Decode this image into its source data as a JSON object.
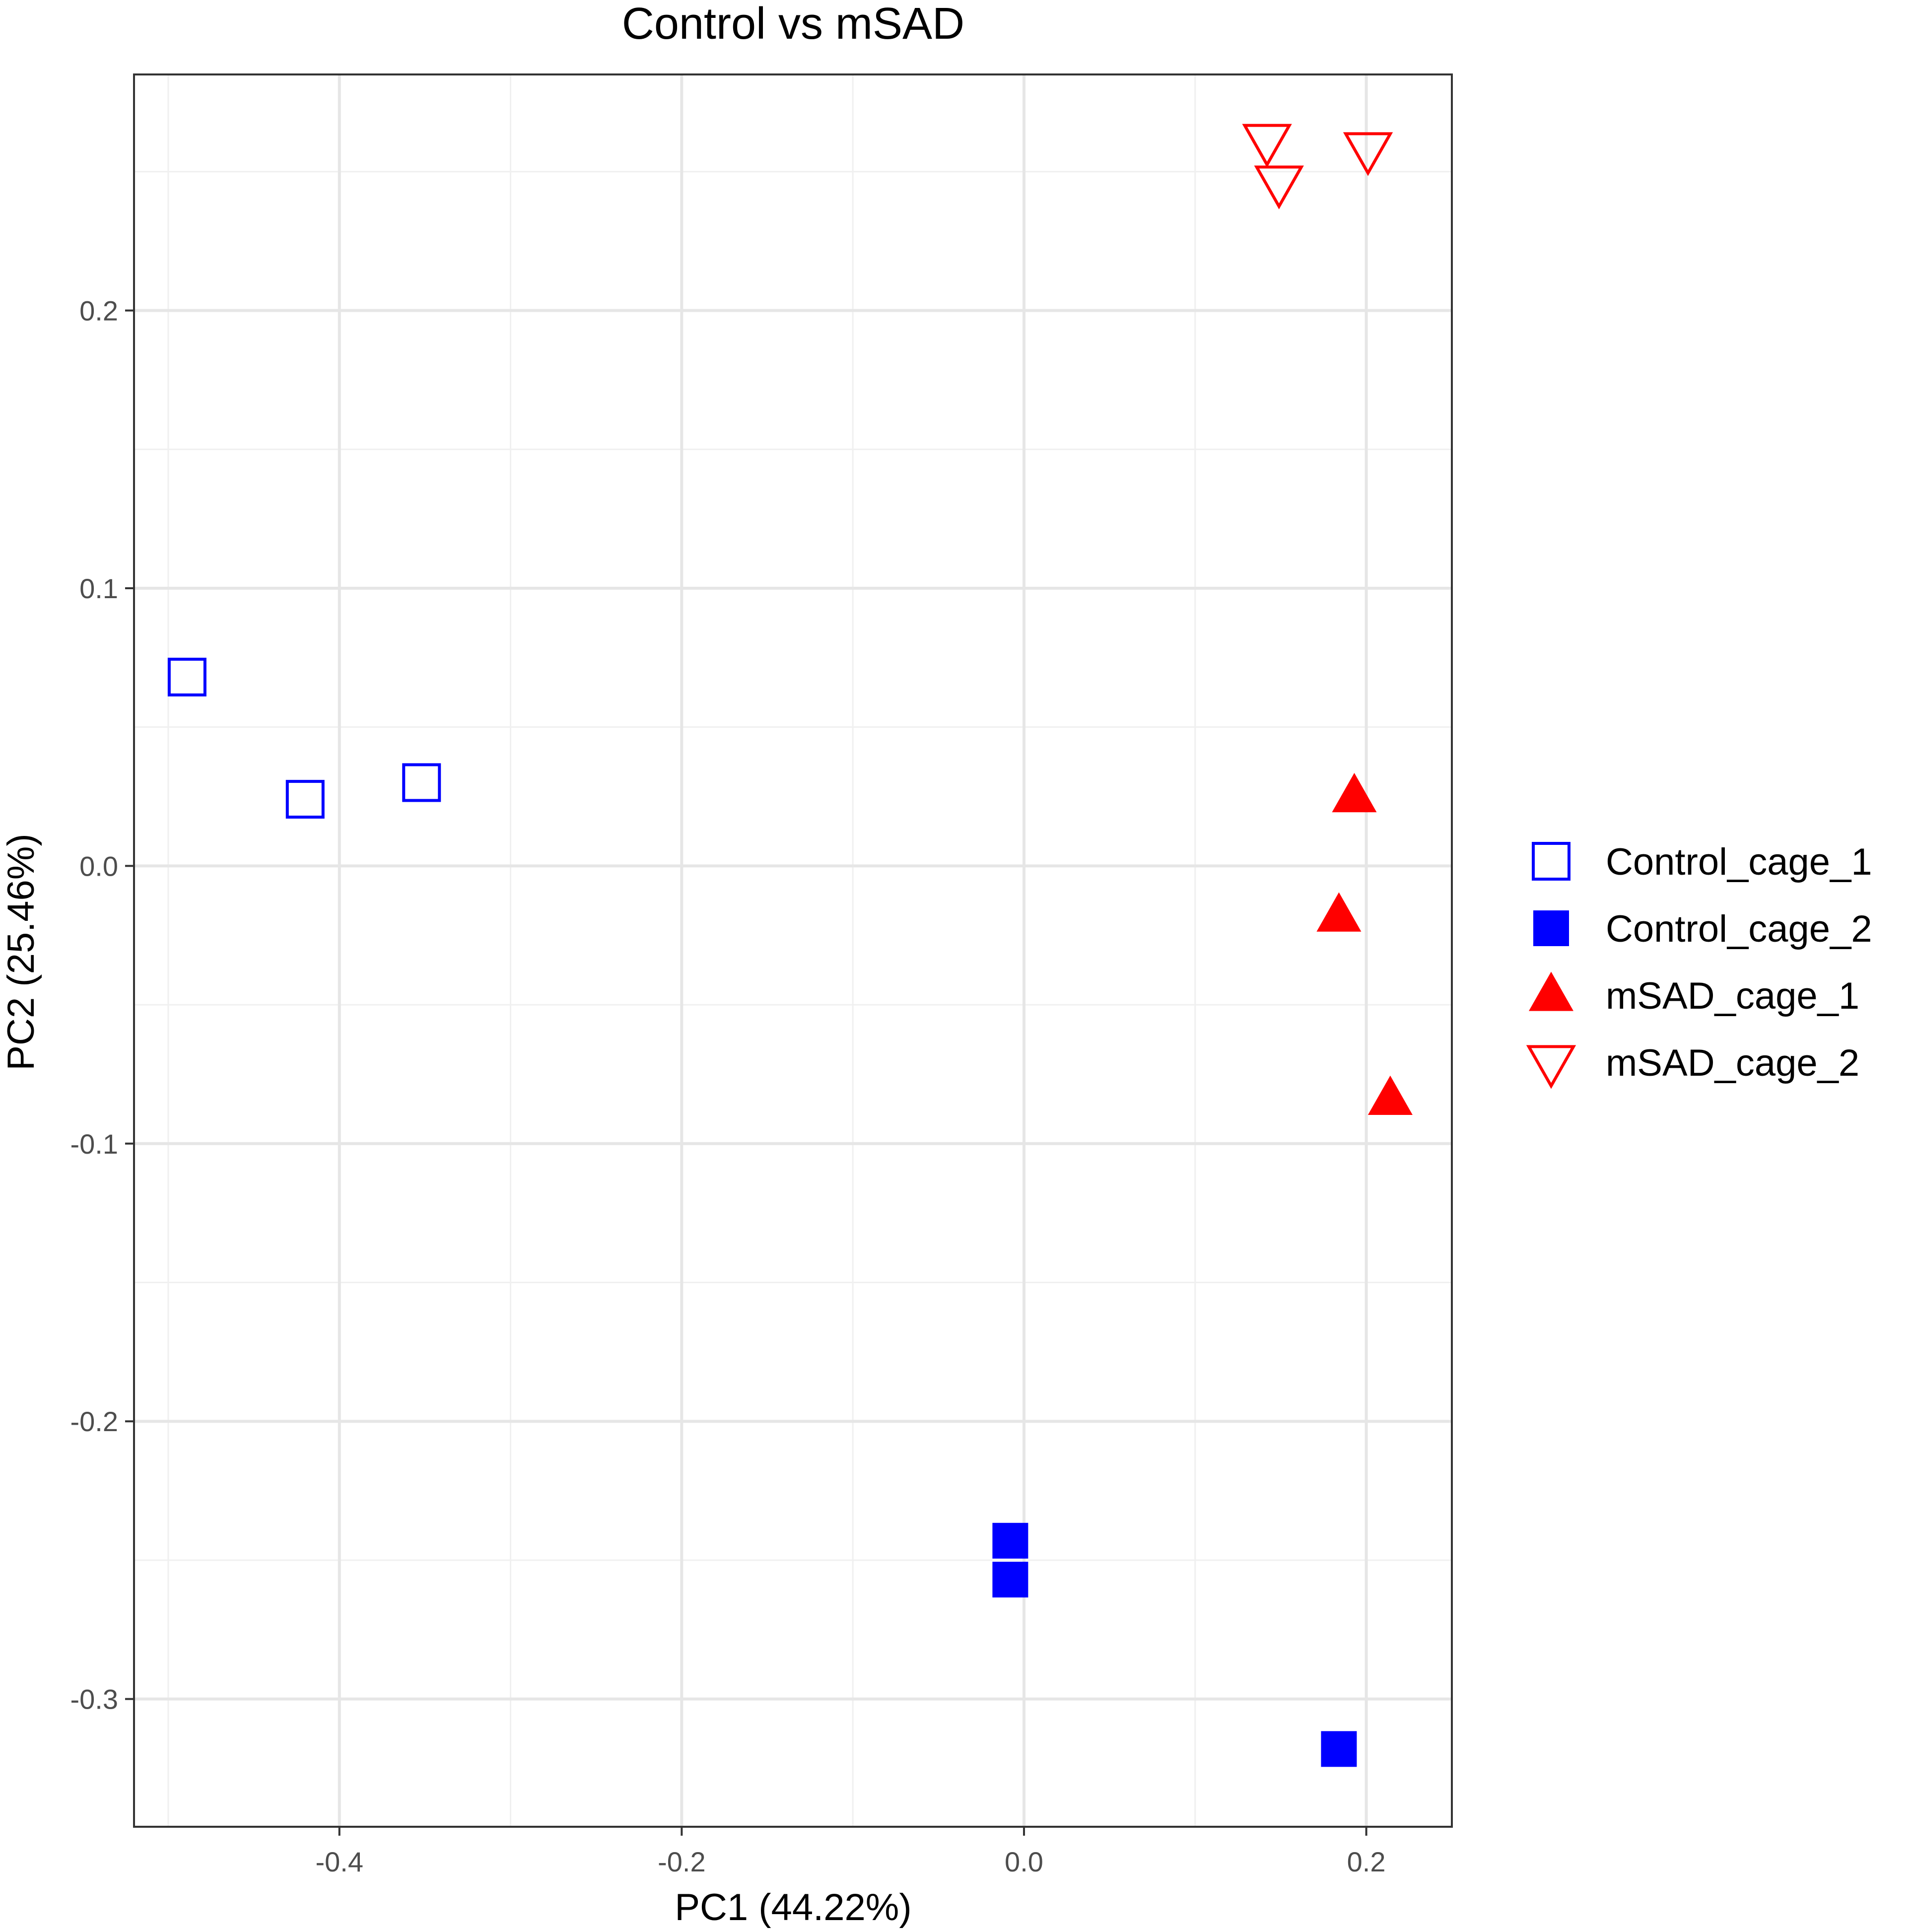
{
  "chart_data": {
    "type": "scatter",
    "title": "Control vs mSAD",
    "xlabel": "PC1 (44.22%)",
    "ylabel": "PC2 (25.46%)",
    "xlim": [
      -0.52,
      0.25
    ],
    "ylim": [
      -0.346,
      0.285
    ],
    "x_ticks": [
      -0.4,
      -0.2,
      0.0,
      0.2
    ],
    "x_tick_labels": [
      "-0.4",
      "-0.2",
      "0.0",
      "0.2"
    ],
    "y_ticks": [
      -0.3,
      -0.2,
      -0.1,
      0.0,
      0.1,
      0.2
    ],
    "y_tick_labels": [
      "-0.3",
      "-0.2",
      "-0.1",
      "0.0",
      "0.1",
      "0.2"
    ],
    "grid": true,
    "legend_position": "right",
    "series": [
      {
        "name": "Control_cage_1",
        "shape": "square-open",
        "color": "#0000FF",
        "points": [
          {
            "x": -0.489,
            "y": 0.068
          },
          {
            "x": -0.42,
            "y": 0.024
          },
          {
            "x": -0.352,
            "y": 0.03
          }
        ]
      },
      {
        "name": "Control_cage_2",
        "shape": "square-filled",
        "color": "#0000FF",
        "points": [
          {
            "x": -0.008,
            "y": -0.243
          },
          {
            "x": -0.008,
            "y": -0.257
          },
          {
            "x": 0.184,
            "y": -0.318
          }
        ]
      },
      {
        "name": "mSAD_cage_1",
        "shape": "triangle-up-filled",
        "color": "#FF0000",
        "points": [
          {
            "x": 0.193,
            "y": 0.025
          },
          {
            "x": 0.184,
            "y": -0.018
          },
          {
            "x": 0.214,
            "y": -0.084
          }
        ]
      },
      {
        "name": "mSAD_cage_2",
        "shape": "triangle-down-open",
        "color": "#FF0000",
        "points": [
          {
            "x": 0.142,
            "y": 0.261
          },
          {
            "x": 0.149,
            "y": 0.246
          },
          {
            "x": 0.201,
            "y": 0.258
          }
        ]
      }
    ]
  }
}
